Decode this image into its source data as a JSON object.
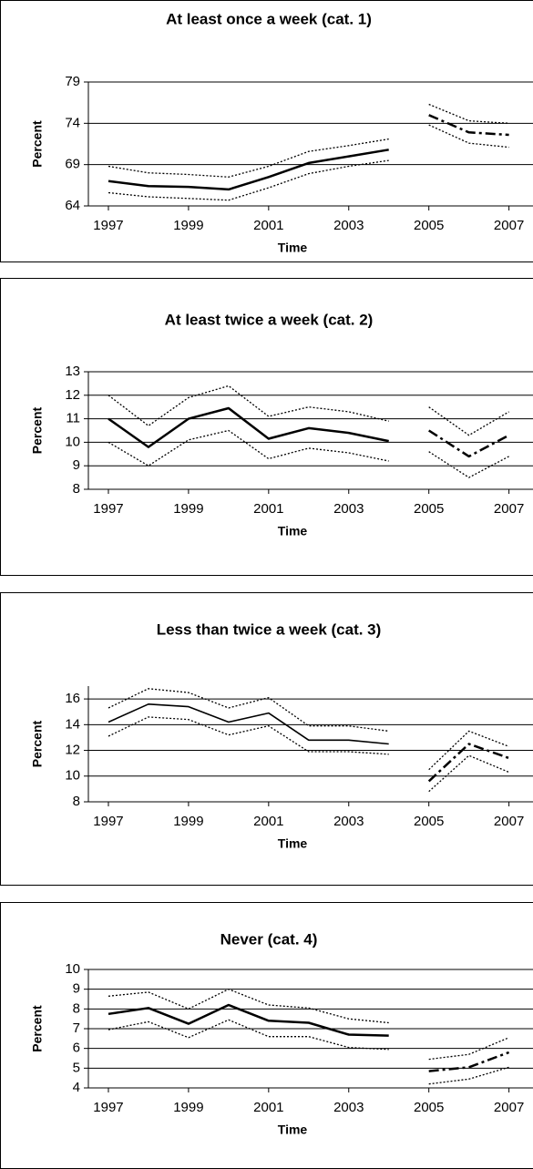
{
  "chart_data": [
    {
      "type": "line",
      "title": "At least once a week (cat. 1)",
      "xlabel": "Time",
      "ylabel": "Percent",
      "xlim": [
        1996.5,
        2007.6
      ],
      "xticks": [
        1997,
        1999,
        2001,
        2003,
        2005,
        2007
      ],
      "ylim": [
        64,
        79
      ],
      "yticks": [
        64,
        69,
        74,
        79
      ],
      "grid": true,
      "series": [
        {
          "color": "#000000",
          "style": "solid",
          "x": [
            1997,
            1998,
            1999,
            2000,
            2001,
            2002,
            2003,
            2004
          ],
          "values": [
            67.0,
            66.4,
            66.3,
            66.0,
            67.5,
            69.2,
            70.0,
            70.8
          ]
        },
        {
          "color": "#000000",
          "style": "dotted",
          "x": [
            1997,
            1998,
            1999,
            2000,
            2001,
            2002,
            2003,
            2004
          ],
          "values": [
            68.8,
            68.0,
            67.8,
            67.5,
            68.8,
            70.6,
            71.3,
            72.1
          ]
        },
        {
          "color": "#000000",
          "style": "dotted",
          "x": [
            1997,
            1998,
            1999,
            2000,
            2001,
            2002,
            2003,
            2004
          ],
          "values": [
            65.6,
            65.1,
            64.9,
            64.7,
            66.2,
            67.9,
            68.8,
            69.5
          ]
        },
        {
          "color": "#000000",
          "style": "dashdot",
          "x": [
            2005,
            2006,
            2007
          ],
          "values": [
            75.0,
            72.9,
            72.6
          ]
        },
        {
          "color": "#000000",
          "style": "dotted",
          "x": [
            2005,
            2006,
            2007
          ],
          "values": [
            76.3,
            74.3,
            74.0
          ]
        },
        {
          "color": "#000000",
          "style": "dotted",
          "x": [
            2005,
            2006,
            2007
          ],
          "values": [
            73.8,
            71.6,
            71.1
          ]
        }
      ]
    },
    {
      "type": "line",
      "title": "At least twice a week (cat. 2)",
      "xlabel": "Time",
      "ylabel": "Percent",
      "xlim": [
        1996.5,
        2007.6
      ],
      "xticks": [
        1997,
        1999,
        2001,
        2003,
        2005,
        2007
      ],
      "ylim": [
        8,
        13
      ],
      "yticks": [
        8,
        9,
        10,
        11,
        12,
        13
      ],
      "grid": true,
      "series": [
        {
          "color": "#000000",
          "style": "solid",
          "x": [
            1997,
            1998,
            1999,
            2000,
            2001,
            2002,
            2003,
            2004
          ],
          "values": [
            11.0,
            9.8,
            11.0,
            11.45,
            10.15,
            10.6,
            10.4,
            10.05
          ]
        },
        {
          "color": "#000000",
          "style": "dotted",
          "x": [
            1997,
            1998,
            1999,
            2000,
            2001,
            2002,
            2003,
            2004
          ],
          "values": [
            12.0,
            10.7,
            11.9,
            12.4,
            11.1,
            11.5,
            11.3,
            10.9
          ]
        },
        {
          "color": "#000000",
          "style": "dotted",
          "x": [
            1997,
            1998,
            1999,
            2000,
            2001,
            2002,
            2003,
            2004
          ],
          "values": [
            10.0,
            9.0,
            10.1,
            10.5,
            9.3,
            9.75,
            9.55,
            9.2
          ]
        },
        {
          "color": "#000000",
          "style": "dashdot",
          "x": [
            2005,
            2006,
            2007
          ],
          "values": [
            10.5,
            9.4,
            10.3
          ]
        },
        {
          "color": "#000000",
          "style": "dotted",
          "x": [
            2005,
            2006,
            2007
          ],
          "values": [
            11.5,
            10.3,
            11.3
          ]
        },
        {
          "color": "#000000",
          "style": "dotted",
          "x": [
            2005,
            2006,
            2007
          ],
          "values": [
            9.6,
            8.5,
            9.4
          ]
        }
      ]
    },
    {
      "type": "line",
      "title": "Less than twice a week (cat. 3)",
      "xlabel": "Time",
      "ylabel": "Percent",
      "xlim": [
        1996.5,
        2007.6
      ],
      "xticks": [
        1997,
        1999,
        2001,
        2003,
        2005,
        2007
      ],
      "ylim": [
        8,
        17
      ],
      "yticks": [
        8,
        10,
        12,
        14,
        16
      ],
      "grid": true,
      "series": [
        {
          "color": "#000000",
          "style": "solid",
          "x": [
            1997,
            1998,
            1999,
            2000,
            2001,
            2002,
            2003,
            2004
          ],
          "values": [
            14.2,
            15.6,
            15.4,
            14.2,
            14.9,
            12.8,
            12.8,
            12.5
          ]
        },
        {
          "color": "#000000",
          "style": "dotted",
          "x": [
            1997,
            1998,
            1999,
            2000,
            2001,
            2002,
            2003,
            2004
          ],
          "values": [
            15.3,
            16.8,
            16.5,
            15.3,
            16.1,
            13.9,
            13.9,
            13.5
          ]
        },
        {
          "color": "#000000",
          "style": "dotted",
          "x": [
            1997,
            1998,
            1999,
            2000,
            2001,
            2002,
            2003,
            2004
          ],
          "values": [
            13.1,
            14.6,
            14.4,
            13.2,
            13.9,
            11.9,
            11.9,
            11.7
          ]
        },
        {
          "color": "#000000",
          "style": "dashdot",
          "x": [
            2005,
            2006,
            2007
          ],
          "values": [
            9.6,
            12.5,
            11.4
          ]
        },
        {
          "color": "#000000",
          "style": "dotted",
          "x": [
            2005,
            2006,
            2007
          ],
          "values": [
            10.5,
            13.5,
            12.3
          ]
        },
        {
          "color": "#000000",
          "style": "dotted",
          "x": [
            2005,
            2006,
            2007
          ],
          "values": [
            8.8,
            11.6,
            10.3
          ]
        }
      ]
    },
    {
      "type": "line",
      "title": "Never (cat. 4)",
      "xlabel": "Time",
      "ylabel": "Percent",
      "xlim": [
        1996.5,
        2007.6
      ],
      "xticks": [
        1997,
        1999,
        2001,
        2003,
        2005,
        2007
      ],
      "ylim": [
        4,
        10
      ],
      "yticks": [
        4,
        5,
        6,
        7,
        8,
        9,
        10
      ],
      "grid": true,
      "series": [
        {
          "color": "#000000",
          "style": "solid",
          "x": [
            1997,
            1998,
            1999,
            2000,
            2001,
            2002,
            2003,
            2004
          ],
          "values": [
            7.75,
            8.05,
            7.25,
            8.2,
            7.4,
            7.3,
            6.7,
            6.65
          ]
        },
        {
          "color": "#000000",
          "style": "dotted",
          "x": [
            1997,
            1998,
            1999,
            2000,
            2001,
            2002,
            2003,
            2004
          ],
          "values": [
            8.65,
            8.85,
            8.0,
            9.0,
            8.2,
            8.05,
            7.5,
            7.3
          ]
        },
        {
          "color": "#000000",
          "style": "dotted",
          "x": [
            1997,
            1998,
            1999,
            2000,
            2001,
            2002,
            2003,
            2004
          ],
          "values": [
            6.95,
            7.35,
            6.55,
            7.45,
            6.6,
            6.6,
            6.05,
            5.95
          ]
        },
        {
          "color": "#000000",
          "style": "dashdot",
          "x": [
            2005,
            2006,
            2007
          ],
          "values": [
            4.85,
            5.05,
            5.8
          ]
        },
        {
          "color": "#000000",
          "style": "dotted",
          "x": [
            2005,
            2006,
            2007
          ],
          "values": [
            5.45,
            5.7,
            6.55
          ]
        },
        {
          "color": "#000000",
          "style": "dotted",
          "x": [
            2005,
            2006,
            2007
          ],
          "values": [
            4.2,
            4.45,
            5.05
          ]
        }
      ]
    }
  ]
}
